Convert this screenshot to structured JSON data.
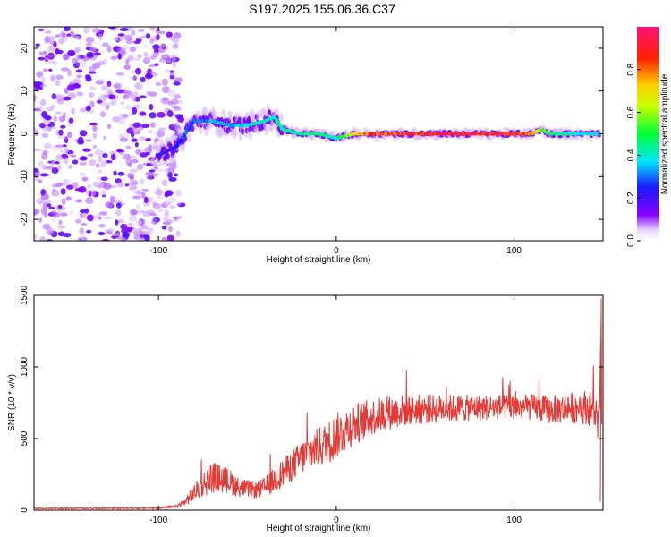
{
  "title": "S197.2025.155.06.36.C37",
  "chart_data": [
    {
      "type": "heatmap",
      "xlabel": "Height of straight line (km)",
      "ylabel": "Frequency (Hz)",
      "xlim": [
        -170,
        150
      ],
      "ylim": [
        -25,
        25
      ],
      "xticks": [
        -100,
        0,
        100
      ],
      "xtick_labels": [
        "-100",
        "0",
        "100"
      ],
      "yticks": [
        -20,
        -10,
        0,
        10,
        20
      ],
      "ytick_labels": [
        "-20",
        "-10",
        "0",
        "10",
        "20"
      ],
      "colorbar": {
        "label": "Normalized spectral amplitude",
        "range": [
          0,
          1
        ],
        "ticks": [
          0.0,
          0.2,
          0.4,
          0.6,
          0.8
        ],
        "tick_labels": [
          "0.0",
          "0.2",
          "0.4",
          "0.6",
          "0.8"
        ]
      },
      "ridge": {
        "x": [
          -100,
          -90,
          -85,
          -80,
          -70,
          -60,
          -50,
          -40,
          -35,
          -30,
          -20,
          -10,
          0,
          10,
          20,
          40,
          60,
          80,
          100,
          110,
          115,
          120,
          130,
          140,
          148
        ],
        "frequency": [
          -5,
          -3,
          0,
          3,
          3,
          2,
          2,
          3,
          4,
          1,
          0,
          0,
          -1,
          0,
          0,
          0,
          0,
          0,
          0,
          0,
          1,
          0,
          0,
          0,
          0
        ],
        "amplitude": [
          0.2,
          0.25,
          0.3,
          0.3,
          0.35,
          0.35,
          0.4,
          0.45,
          0.45,
          0.45,
          0.45,
          0.5,
          0.4,
          0.7,
          0.85,
          0.9,
          0.95,
          0.95,
          0.9,
          0.85,
          0.6,
          0.5,
          0.45,
          0.4,
          0.4
        ]
      },
      "noise_region_x": [
        -170,
        -95
      ]
    },
    {
      "type": "line",
      "xlabel": "Height of straight line (km)",
      "ylabel": "SNR (10 * v/v)",
      "xlim": [
        -170,
        150
      ],
      "ylim": [
        0,
        1500
      ],
      "xticks": [
        -100,
        0,
        100
      ],
      "xtick_labels": [
        "-100",
        "0",
        "100"
      ],
      "yticks": [
        0,
        500,
        1000,
        1500
      ],
      "ytick_labels": [
        "0",
        "500",
        "1000",
        "1500"
      ],
      "color": "#e53935",
      "series": [
        {
          "trend_x": [
            -170,
            -100,
            -90,
            -85,
            -80,
            -75,
            -70,
            -65,
            -60,
            -55,
            -50,
            -45,
            -40,
            -35,
            -30,
            -25,
            -20,
            -15,
            -10,
            -5,
            0,
            10,
            20,
            30,
            40,
            60,
            80,
            100,
            110,
            120,
            130,
            140,
            145,
            148,
            149
          ],
          "trend_y": [
            12,
            15,
            25,
            60,
            120,
            180,
            230,
            220,
            200,
            160,
            150,
            140,
            160,
            210,
            260,
            310,
            360,
            410,
            440,
            470,
            520,
            600,
            650,
            680,
            700,
            710,
            715,
            720,
            720,
            700,
            710,
            720,
            700,
            600,
            1400
          ],
          "noise_amplitude": [
            4,
            5,
            10,
            30,
            60,
            90,
            110,
            100,
            90,
            70,
            60,
            60,
            70,
            90,
            100,
            110,
            120,
            130,
            140,
            150,
            160,
            150,
            130,
            120,
            110,
            100,
            90,
            90,
            90,
            100,
            110,
            120,
            130,
            150,
            0
          ]
        }
      ]
    }
  ]
}
